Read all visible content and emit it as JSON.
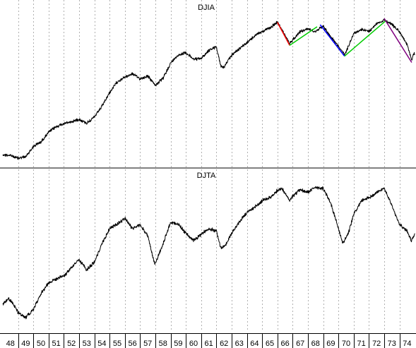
{
  "chart_data": [
    {
      "type": "line",
      "title": "DJIA",
      "scale": "log",
      "grid": "vertical-dotted",
      "x_start": 1948.0,
      "x_end": 1975.0,
      "y_range": [
        160,
        1080
      ],
      "series": [
        {
          "points": [
            [
              1948.0,
              180
            ],
            [
              1948.5,
              178
            ],
            [
              1949.0,
              172
            ],
            [
              1949.5,
              175
            ],
            [
              1950.0,
              200
            ],
            [
              1950.5,
              212
            ],
            [
              1951.0,
              240
            ],
            [
              1951.5,
              258
            ],
            [
              1952.0,
              268
            ],
            [
              1952.5,
              275
            ],
            [
              1953.0,
              284
            ],
            [
              1953.5,
              270
            ],
            [
              1954.0,
              292
            ],
            [
              1954.5,
              335
            ],
            [
              1955.0,
              400
            ],
            [
              1955.5,
              460
            ],
            [
              1956.0,
              488
            ],
            [
              1956.5,
              510
            ],
            [
              1957.0,
              478
            ],
            [
              1957.5,
              495
            ],
            [
              1958.0,
              440
            ],
            [
              1958.5,
              480
            ],
            [
              1959.0,
              585
            ],
            [
              1959.5,
              650
            ],
            [
              1960.0,
              670
            ],
            [
              1960.5,
              615
            ],
            [
              1961.0,
              620
            ],
            [
              1961.5,
              690
            ],
            [
              1962.0,
              720
            ],
            [
              1962.3,
              560
            ],
            [
              1962.5,
              555
            ],
            [
              1963.0,
              650
            ],
            [
              1963.5,
              705
            ],
            [
              1964.0,
              760
            ],
            [
              1964.5,
              830
            ],
            [
              1965.0,
              880
            ],
            [
              1965.5,
              920
            ],
            [
              1966.0,
              990
            ],
            [
              1966.4,
              870
            ],
            [
              1966.8,
              750
            ],
            [
              1967.0,
              790
            ],
            [
              1967.5,
              880
            ],
            [
              1968.0,
              910
            ],
            [
              1968.5,
              880
            ],
            [
              1969.0,
              945
            ],
            [
              1969.5,
              820
            ],
            [
              1970.0,
              730
            ],
            [
              1970.4,
              650
            ],
            [
              1970.8,
              780
            ],
            [
              1971.0,
              860
            ],
            [
              1971.5,
              900
            ],
            [
              1972.0,
              880
            ],
            [
              1972.5,
              970
            ],
            [
              1973.0,
              1020
            ],
            [
              1973.5,
              960
            ],
            [
              1974.0,
              880
            ],
            [
              1974.5,
              740
            ],
            [
              1974.8,
              610
            ],
            [
              1974.95,
              665
            ],
            [
              1975.0,
              650
            ]
          ]
        }
      ],
      "trend_segments": [
        {
          "color": "#ff0000",
          "from": [
            1966.0,
            990
          ],
          "to": [
            1966.8,
            735
          ]
        },
        {
          "color": "#00cc00",
          "from": [
            1966.8,
            735
          ],
          "to": [
            1968.6,
            935
          ]
        },
        {
          "color": "#0000ff",
          "from": [
            1968.8,
            960
          ],
          "to": [
            1970.4,
            640
          ]
        },
        {
          "color": "#00cc00",
          "from": [
            1970.4,
            640
          ],
          "to": [
            1973.1,
            1010
          ]
        },
        {
          "color": "#800080",
          "from": [
            1973.0,
            1040
          ],
          "to": [
            1974.8,
            590
          ]
        }
      ]
    },
    {
      "type": "line",
      "title": "DJTA",
      "scale": "log",
      "grid": "vertical-dotted",
      "x_start": 1948.0,
      "x_end": 1975.0,
      "y_range": [
        35,
        290
      ],
      "series": [
        {
          "points": [
            [
              1948.0,
              50
            ],
            [
              1948.4,
              54
            ],
            [
              1948.8,
              48
            ],
            [
              1949.0,
              44
            ],
            [
              1949.5,
              41
            ],
            [
              1950.0,
              46
            ],
            [
              1950.5,
              58
            ],
            [
              1951.0,
              68
            ],
            [
              1951.5,
              72
            ],
            [
              1952.0,
              75
            ],
            [
              1952.5,
              85
            ],
            [
              1953.0,
              95
            ],
            [
              1953.5,
              82
            ],
            [
              1954.0,
              92
            ],
            [
              1954.5,
              120
            ],
            [
              1955.0,
              150
            ],
            [
              1955.5,
              160
            ],
            [
              1956.0,
              175
            ],
            [
              1956.5,
              150
            ],
            [
              1957.0,
              158
            ],
            [
              1957.5,
              135
            ],
            [
              1957.9,
              93
            ],
            [
              1958.0,
              90
            ],
            [
              1958.5,
              120
            ],
            [
              1959.0,
              165
            ],
            [
              1959.5,
              160
            ],
            [
              1960.0,
              140
            ],
            [
              1960.5,
              126
            ],
            [
              1961.0,
              138
            ],
            [
              1961.5,
              150
            ],
            [
              1962.0,
              145
            ],
            [
              1962.3,
              112
            ],
            [
              1962.6,
              118
            ],
            [
              1963.0,
              140
            ],
            [
              1963.5,
              165
            ],
            [
              1964.0,
              190
            ],
            [
              1964.5,
              205
            ],
            [
              1965.0,
              225
            ],
            [
              1965.5,
              235
            ],
            [
              1966.0,
              262
            ],
            [
              1966.3,
              270
            ],
            [
              1966.8,
              225
            ],
            [
              1967.0,
              240
            ],
            [
              1967.5,
              265
            ],
            [
              1968.0,
              255
            ],
            [
              1968.5,
              275
            ],
            [
              1969.0,
              270
            ],
            [
              1969.5,
              218
            ],
            [
              1970.0,
              150
            ],
            [
              1970.3,
              120
            ],
            [
              1970.7,
              145
            ],
            [
              1971.0,
              185
            ],
            [
              1971.5,
              225
            ],
            [
              1972.0,
              235
            ],
            [
              1972.5,
              255
            ],
            [
              1973.0,
              270
            ],
            [
              1973.5,
              210
            ],
            [
              1974.0,
              160
            ],
            [
              1974.5,
              145
            ],
            [
              1974.8,
              125
            ],
            [
              1975.0,
              140
            ]
          ]
        }
      ]
    }
  ],
  "x_axis": {
    "tick_labels": [
      "48",
      "49",
      "50",
      "51",
      "52",
      "53",
      "54",
      "55",
      "56",
      "57",
      "58",
      "59",
      "60",
      "61",
      "62",
      "63",
      "64",
      "65",
      "66",
      "67",
      "68",
      "69",
      "70",
      "71",
      "72",
      "73",
      "74"
    ]
  }
}
